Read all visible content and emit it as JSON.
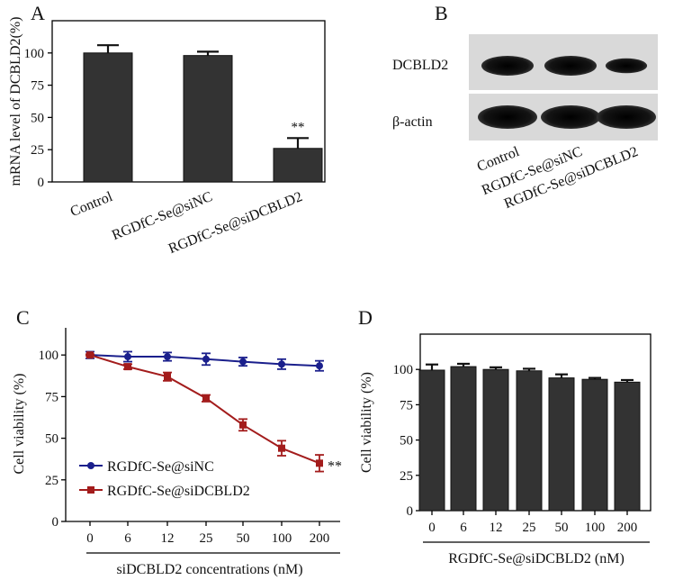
{
  "panels": {
    "A": "A",
    "B": "B",
    "C": "C",
    "D": "D"
  },
  "panel_b_blot": {
    "bands": [
      "DCBLD2",
      "β-actin"
    ],
    "lanes": [
      "Control",
      "RGDfC-Se@siNC",
      "RGDfC-Se@siDCBLD2"
    ],
    "intensity": [
      [
        1.0,
        1.0,
        0.55
      ],
      [
        1.0,
        1.0,
        1.0
      ]
    ]
  },
  "chart_data": [
    {
      "id": "A",
      "type": "bar",
      "categories": [
        "Control",
        "RGDfC-Se@siNC",
        "RGDfC-Se@siDCBLD2"
      ],
      "values": [
        100,
        98,
        26
      ],
      "errors": [
        6,
        3,
        8
      ],
      "annotations": [
        "",
        "",
        "**"
      ],
      "ylabel": "mRNA level of DCBLD2(%)",
      "yticks": [
        "0",
        "25",
        "50",
        "75",
        "100"
      ],
      "ylim": [
        0,
        125
      ],
      "color": "#333333"
    },
    {
      "id": "C",
      "type": "line",
      "categories": [
        "0",
        "6",
        "12",
        "25",
        "50",
        "100",
        "200"
      ],
      "series": [
        {
          "name": "RGDfC-Se@siNC",
          "color": "#1a1f8c",
          "marker": "circle",
          "values": [
            100,
            99,
            99,
            97.5,
            96,
            94.5,
            93.5
          ],
          "errors": [
            2,
            3,
            2.5,
            3.5,
            2.5,
            3,
            3
          ]
        },
        {
          "name": "RGDfC-Se@siDCBLD2",
          "color": "#a31c1c",
          "marker": "square",
          "values": [
            100,
            93,
            87,
            74,
            58,
            44,
            35
          ],
          "errors": [
            0.5,
            1.5,
            2.5,
            2,
            3.5,
            4.5,
            5
          ]
        }
      ],
      "end_annotation": "**",
      "xlabel": "siDCBLD2 concentrations (nM)",
      "ylabel": "Cell viability (%)",
      "yticks": [
        "0",
        "25",
        "50",
        "75",
        "100"
      ],
      "ylim": [
        0,
        112
      ]
    },
    {
      "id": "D",
      "type": "bar",
      "categories": [
        "0",
        "6",
        "12",
        "25",
        "50",
        "100",
        "200"
      ],
      "values": [
        99.5,
        102,
        100,
        99,
        94,
        93,
        91
      ],
      "errors": [
        4,
        2,
        1.5,
        1.5,
        2.5,
        1,
        1.5
      ],
      "xlabel": "RGDfC-Se@siDCBLD2 (nM)",
      "ylabel": "Cell viability (%)",
      "yticks": [
        "0",
        "25",
        "50",
        "75",
        "100"
      ],
      "ylim": [
        0,
        125
      ],
      "color": "#333333"
    }
  ]
}
